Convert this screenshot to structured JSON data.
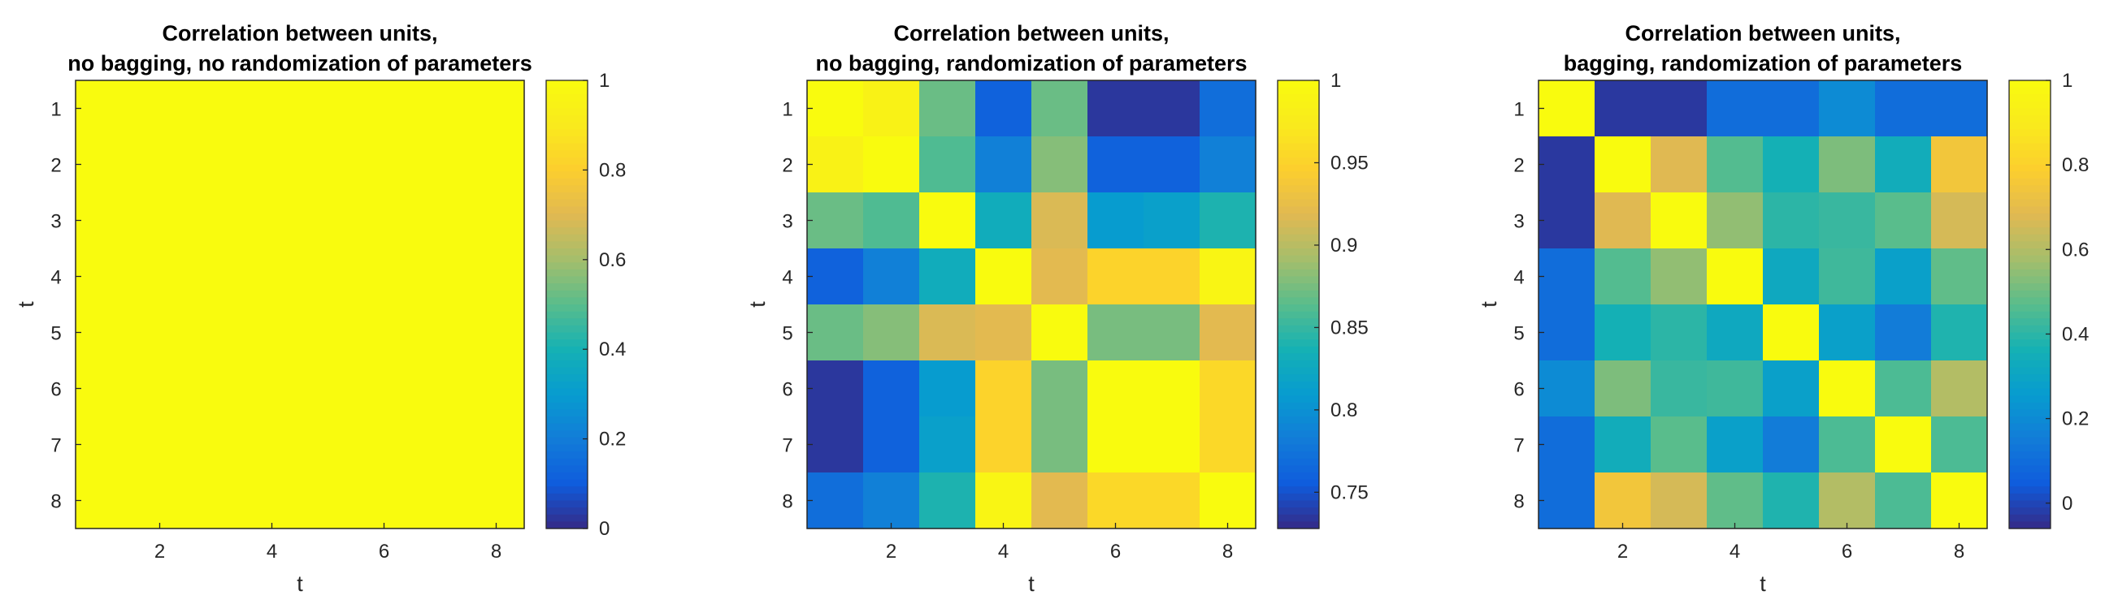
{
  "chart_data": [
    {
      "type": "heatmap",
      "title": [
        "Correlation between units,",
        "no bagging, no randomization of parameters"
      ],
      "xlabel": "t",
      "ylabel": "t",
      "x": [
        1,
        2,
        3,
        4,
        5,
        6,
        7,
        8
      ],
      "y": [
        1,
        2,
        3,
        4,
        5,
        6,
        7,
        8
      ],
      "xticks": [
        "2",
        "4",
        "6",
        "8"
      ],
      "yticks": [
        "1",
        "2",
        "3",
        "4",
        "5",
        "6",
        "7",
        "8"
      ],
      "colorbar": {
        "range": [
          0,
          1
        ],
        "ticks": [
          "0",
          "0.2",
          "0.4",
          "0.6",
          "0.8",
          "1"
        ]
      },
      "values": [
        [
          1,
          1,
          1,
          1,
          1,
          1,
          1,
          1
        ],
        [
          1,
          1,
          1,
          1,
          1,
          1,
          1,
          1
        ],
        [
          1,
          1,
          1,
          1,
          1,
          1,
          1,
          1
        ],
        [
          1,
          1,
          1,
          1,
          1,
          1,
          1,
          1
        ],
        [
          1,
          1,
          1,
          1,
          1,
          1,
          1,
          1
        ],
        [
          1,
          1,
          1,
          1,
          1,
          1,
          1,
          1
        ],
        [
          1,
          1,
          1,
          1,
          1,
          1,
          1,
          1
        ],
        [
          1,
          1,
          1,
          1,
          1,
          1,
          1,
          1
        ]
      ]
    },
    {
      "type": "heatmap",
      "title": [
        "Correlation between units,",
        "no bagging, randomization of parameters"
      ],
      "xlabel": "t",
      "ylabel": "t",
      "x": [
        1,
        2,
        3,
        4,
        5,
        6,
        7,
        8
      ],
      "y": [
        1,
        2,
        3,
        4,
        5,
        6,
        7,
        8
      ],
      "xticks": [
        "2",
        "4",
        "6",
        "8"
      ],
      "yticks": [
        "1",
        "2",
        "3",
        "4",
        "5",
        "6",
        "7",
        "8"
      ],
      "colorbar": {
        "range": [
          0.728,
          1
        ],
        "ticks": [
          "0.75",
          "0.8",
          "0.85",
          "0.9",
          "0.95",
          "1"
        ]
      },
      "values": [
        [
          1.0,
          0.985,
          0.87,
          0.76,
          0.87,
          0.735,
          0.735,
          0.77
        ],
        [
          0.985,
          1.0,
          0.86,
          0.785,
          0.88,
          0.76,
          0.76,
          0.785
        ],
        [
          0.87,
          0.86,
          1.0,
          0.83,
          0.915,
          0.81,
          0.815,
          0.84
        ],
        [
          0.76,
          0.785,
          0.83,
          1.0,
          0.92,
          0.95,
          0.95,
          0.99
        ],
        [
          0.87,
          0.88,
          0.915,
          0.92,
          1.0,
          0.875,
          0.875,
          0.92
        ],
        [
          0.735,
          0.76,
          0.81,
          0.95,
          0.875,
          1.0,
          1.0,
          0.955
        ],
        [
          0.735,
          0.76,
          0.815,
          0.95,
          0.875,
          1.0,
          1.0,
          0.955
        ],
        [
          0.77,
          0.785,
          0.84,
          0.99,
          0.92,
          0.955,
          0.955,
          1.0
        ]
      ]
    },
    {
      "type": "heatmap",
      "title": [
        "Correlation between units,",
        "bagging, randomization of parameters"
      ],
      "xlabel": "t",
      "ylabel": "t",
      "x": [
        1,
        2,
        3,
        4,
        5,
        6,
        7,
        8
      ],
      "y": [
        1,
        2,
        3,
        4,
        5,
        6,
        7,
        8
      ],
      "xticks": [
        "2",
        "4",
        "6",
        "8"
      ],
      "yticks": [
        "1",
        "2",
        "3",
        "4",
        "5",
        "6",
        "7",
        "8"
      ],
      "colorbar": {
        "range": [
          -0.06,
          1
        ],
        "ticks": [
          "0",
          "0.2",
          "0.4",
          "0.6",
          "0.8",
          "1"
        ]
      },
      "values": [
        [
          1.0,
          -0.03,
          -0.03,
          0.1,
          0.1,
          0.2,
          0.1,
          0.1
        ],
        [
          -0.03,
          1.0,
          0.68,
          0.46,
          0.36,
          0.52,
          0.34,
          0.75
        ],
        [
          -0.03,
          0.68,
          1.0,
          0.55,
          0.4,
          0.42,
          0.47,
          0.66
        ],
        [
          0.1,
          0.46,
          0.55,
          1.0,
          0.32,
          0.43,
          0.28,
          0.48
        ],
        [
          0.1,
          0.36,
          0.4,
          0.32,
          1.0,
          0.28,
          0.15,
          0.38
        ],
        [
          0.2,
          0.52,
          0.42,
          0.43,
          0.28,
          1.0,
          0.45,
          0.6
        ],
        [
          0.1,
          0.34,
          0.47,
          0.28,
          0.15,
          0.45,
          1.0,
          0.45
        ],
        [
          0.1,
          0.75,
          0.66,
          0.48,
          0.38,
          0.6,
          0.45,
          1.0
        ]
      ]
    }
  ]
}
